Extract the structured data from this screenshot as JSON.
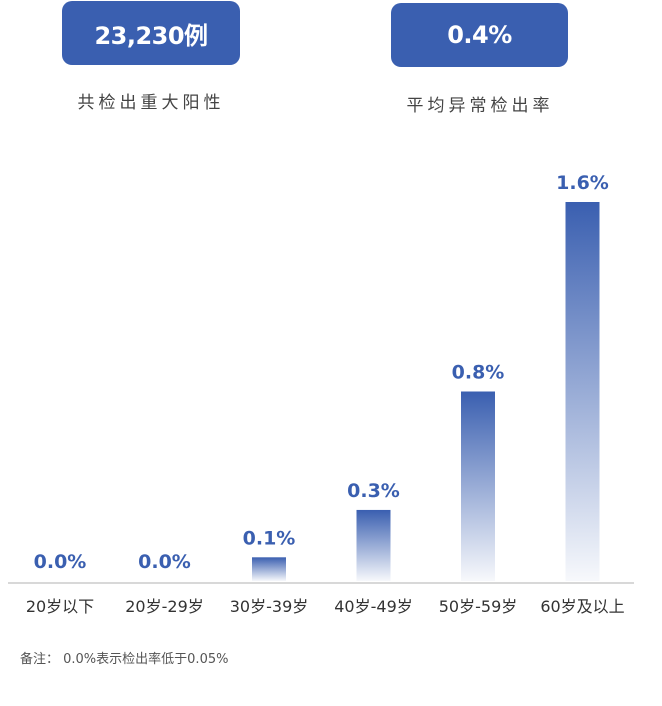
{
  "summary": {
    "cases_value": "23,230例",
    "cases_label": "共检出重大阳性",
    "rate_value": "0.4%",
    "rate_label": "平均异常检出率"
  },
  "colors": {
    "accent": "#3a5fb0",
    "label_text": "#444444",
    "axis": "#cccccc"
  },
  "chart_data": {
    "type": "bar",
    "categories": [
      "20岁以下",
      "20岁-29岁",
      "30岁-39岁",
      "40岁-49岁",
      "50岁-59岁",
      "60岁及以上"
    ],
    "values": [
      0.0,
      0.0,
      0.1,
      0.3,
      0.8,
      1.6
    ],
    "data_labels": [
      "0.0%",
      "0.0%",
      "0.1%",
      "0.3%",
      "0.8%",
      "1.6%"
    ],
    "title": "",
    "xlabel": "",
    "ylabel": "",
    "ylim": [
      0,
      1.6
    ],
    "grid": false,
    "legend": "none"
  },
  "note": "备注： 0.0%表示检出率低于0.05%"
}
